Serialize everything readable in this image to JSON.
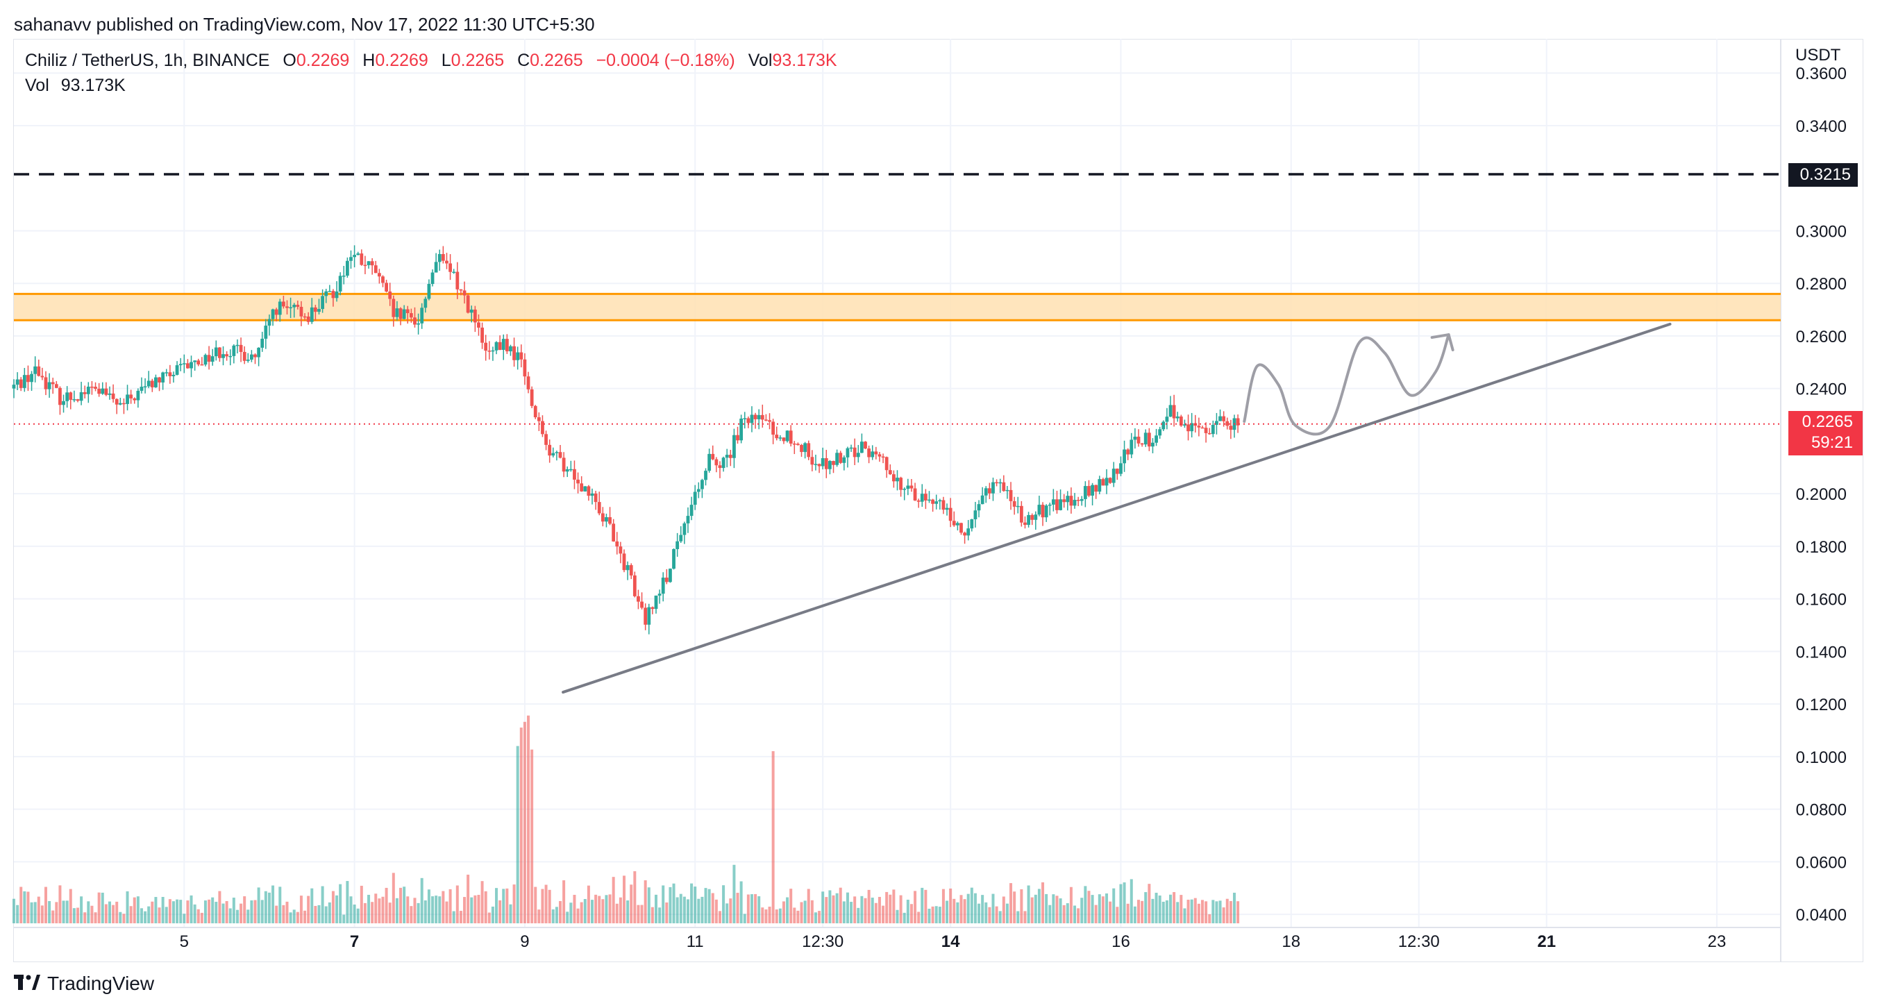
{
  "header": {
    "published": "sahanavv published on TradingView.com, Nov 17, 2022 11:30 UTC+5:30"
  },
  "legend": {
    "symbol": "Chiliz / TetherUS, 1h, BINANCE",
    "o_label": "O",
    "o_value": "0.2269",
    "h_label": "H",
    "h_value": "0.2269",
    "l_label": "L",
    "l_value": "0.2265",
    "c_label": "C",
    "c_value": "0.2265",
    "change": "−0.0004 (−0.18%)",
    "vol_label": "Vol",
    "vol_value": "93.173K",
    "vol2_label": "Vol",
    "vol2_value": "93.173K"
  },
  "axis": {
    "unit": "USDT"
  },
  "price_tags": {
    "resistance": "0.3215",
    "last_price": "0.2265",
    "countdown": "59:21"
  },
  "footer": {
    "brand": "TradingView",
    "logo_icon": "tradingview-logo-icon"
  },
  "colors": {
    "up": "#26a69a",
    "down": "#ef5350",
    "zone_fill": "#ffe0b2",
    "zone_line": "#ff9800",
    "trendline": "#787b86",
    "resistance": "#131722",
    "price_tag": "#f23645"
  },
  "chart_data": {
    "type": "candlestick",
    "symbol": "Chiliz / TetherUS",
    "interval": "1h",
    "exchange": "BINANCE",
    "y_axis": {
      "ticks": [
        "0.3600",
        "0.3400",
        "0.3000",
        "0.2800",
        "0.2600",
        "0.2400",
        "0.2000",
        "0.1800",
        "0.1600",
        "0.1400",
        "0.1200",
        "0.1000",
        "0.0800",
        "0.0600",
        "0.0400"
      ],
      "range": [
        0.035,
        0.373
      ]
    },
    "x_axis": {
      "ticks": [
        {
          "label": "5",
          "day": 5.0,
          "bold": false
        },
        {
          "label": "7",
          "day": 7.0,
          "bold": true
        },
        {
          "label": "9",
          "day": 9.0,
          "bold": false
        },
        {
          "label": "11",
          "day": 11.0,
          "bold": false
        },
        {
          "label": "12:30",
          "day": 12.5,
          "bold": false
        },
        {
          "label": "14",
          "day": 14.0,
          "bold": true
        },
        {
          "label": "16",
          "day": 16.0,
          "bold": false
        },
        {
          "label": "18",
          "day": 18.0,
          "bold": false
        },
        {
          "label": "12:30",
          "day": 19.5,
          "bold": false
        },
        {
          "label": "21",
          "day": 21.0,
          "bold": true
        },
        {
          "label": "23",
          "day": 23.0,
          "bold": false
        }
      ],
      "range_days": [
        3.0,
        23.75
      ]
    },
    "resistance_level": 0.3215,
    "last_price": 0.2265,
    "supply_zone": {
      "low": 0.266,
      "high": 0.276
    },
    "trendline": {
      "start": {
        "day": 9.45,
        "price": 0.1245
      },
      "end": {
        "day": 22.45,
        "price": 0.2645
      }
    },
    "projection_path_points": [
      [
        17.45,
        0.2275
      ],
      [
        17.6,
        0.2485
      ],
      [
        17.85,
        0.2415
      ],
      [
        18.05,
        0.226
      ],
      [
        18.45,
        0.2255
      ],
      [
        18.8,
        0.2575
      ],
      [
        19.1,
        0.2535
      ],
      [
        19.4,
        0.2375
      ],
      [
        19.7,
        0.2465
      ],
      [
        19.85,
        0.2605
      ]
    ],
    "price_keypoints": [
      [
        3.0,
        0.24
      ],
      [
        3.3,
        0.247
      ],
      [
        3.6,
        0.236
      ],
      [
        4.0,
        0.24
      ],
      [
        4.3,
        0.233
      ],
      [
        4.6,
        0.241
      ],
      [
        5.0,
        0.247
      ],
      [
        5.5,
        0.255
      ],
      [
        5.9,
        0.252
      ],
      [
        6.1,
        0.271
      ],
      [
        6.5,
        0.268
      ],
      [
        6.8,
        0.277
      ],
      [
        7.0,
        0.291
      ],
      [
        7.3,
        0.284
      ],
      [
        7.5,
        0.268
      ],
      [
        7.8,
        0.266
      ],
      [
        8.0,
        0.29
      ],
      [
        8.2,
        0.283
      ],
      [
        8.4,
        0.27
      ],
      [
        8.6,
        0.252
      ],
      [
        8.8,
        0.257
      ],
      [
        9.0,
        0.25
      ],
      [
        9.1,
        0.236
      ],
      [
        9.3,
        0.216
      ],
      [
        9.6,
        0.208
      ],
      [
        9.9,
        0.196
      ],
      [
        10.1,
        0.182
      ],
      [
        10.3,
        0.166
      ],
      [
        10.45,
        0.152
      ],
      [
        10.7,
        0.168
      ],
      [
        11.0,
        0.194
      ],
      [
        11.2,
        0.214
      ],
      [
        11.4,
        0.212
      ],
      [
        11.6,
        0.227
      ],
      [
        11.8,
        0.228
      ],
      [
        12.0,
        0.223
      ],
      [
        12.2,
        0.221
      ],
      [
        12.5,
        0.211
      ],
      [
        12.8,
        0.214
      ],
      [
        13.0,
        0.217
      ],
      [
        13.2,
        0.216
      ],
      [
        13.4,
        0.205
      ],
      [
        13.7,
        0.198
      ],
      [
        14.0,
        0.195
      ],
      [
        14.2,
        0.182
      ],
      [
        14.4,
        0.201
      ],
      [
        14.7,
        0.203
      ],
      [
        14.9,
        0.19
      ],
      [
        15.2,
        0.195
      ],
      [
        15.5,
        0.199
      ],
      [
        15.8,
        0.203
      ],
      [
        16.0,
        0.208
      ],
      [
        16.2,
        0.222
      ],
      [
        16.4,
        0.22
      ],
      [
        16.6,
        0.233
      ],
      [
        16.8,
        0.225
      ],
      [
        17.0,
        0.224
      ],
      [
        17.2,
        0.228
      ],
      [
        17.4,
        0.2265
      ]
    ],
    "volume_scale_max": 0.121
  }
}
